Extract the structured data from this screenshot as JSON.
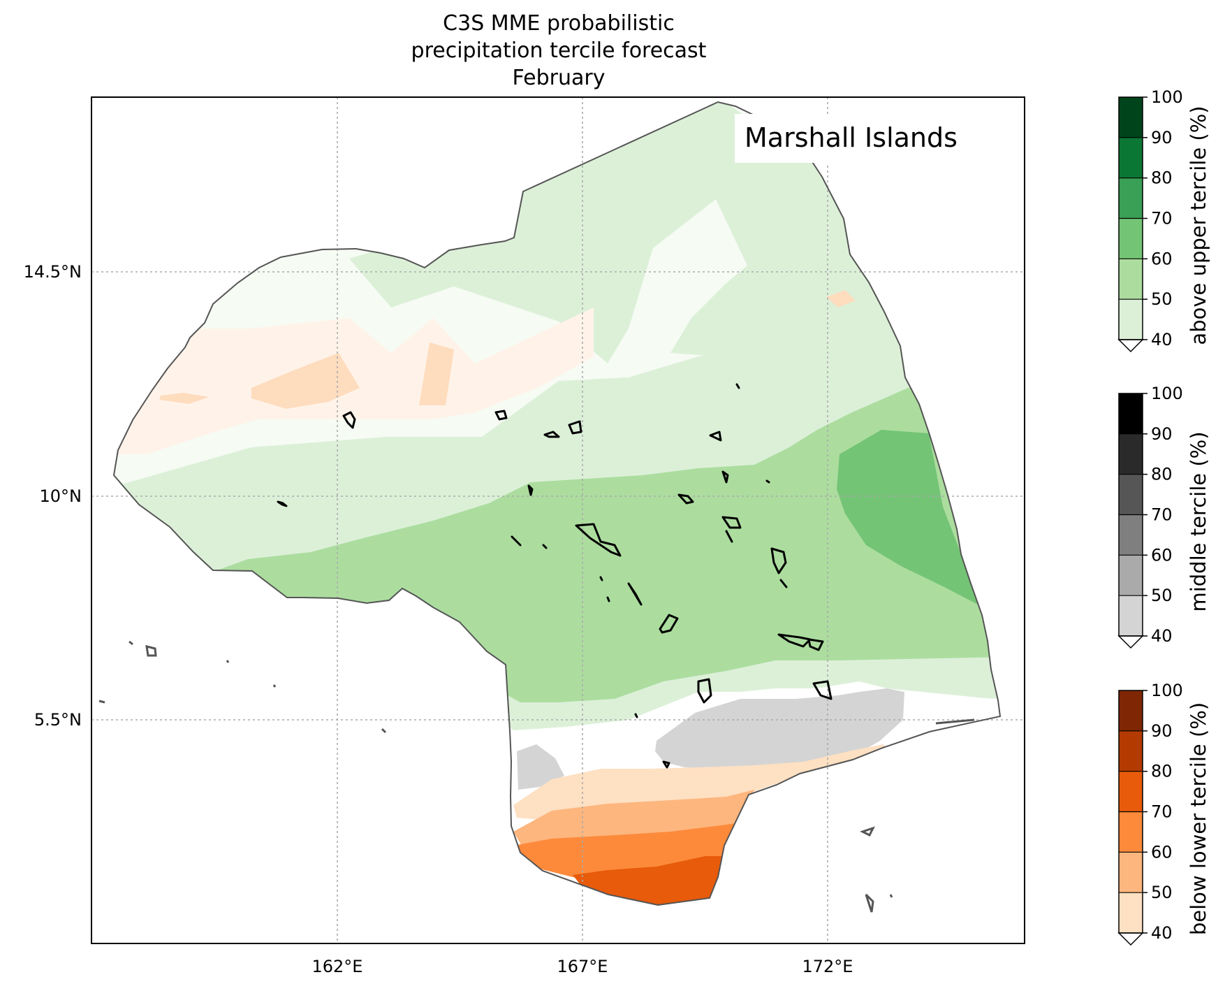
{
  "title_lines": [
    "C3S MME probabilistic",
    "precipitation tercile forecast",
    "February"
  ],
  "region_label": "Marshall Islands",
  "axes": {
    "x_ticks": [
      "162°E",
      "167°E",
      "172°E"
    ],
    "y_ticks": [
      "14.5°N",
      "10°N",
      "5.5°N"
    ]
  },
  "colors": {
    "outline": "#555555",
    "land": "#000000",
    "grid": "#aaaaaa"
  },
  "colorbars": [
    {
      "label": "above upper tercile (%)",
      "ticks": [
        "40",
        "50",
        "60",
        "70",
        "80",
        "90",
        "100"
      ],
      "colors": [
        "#dcf0d8",
        "#acdd9f",
        "#74c476",
        "#39a055",
        "#0b7734",
        "#00441b"
      ]
    },
    {
      "label": "middle tercile (%)",
      "ticks": [
        "40",
        "50",
        "60",
        "70",
        "80",
        "90",
        "100"
      ],
      "colors": [
        "#d4d4d4",
        "#aaaaaa",
        "#7f7f7f",
        "#565656",
        "#2a2a2a",
        "#000000"
      ]
    },
    {
      "label": "below lower tercile (%)",
      "ticks": [
        "40",
        "50",
        "60",
        "70",
        "80",
        "90",
        "100"
      ],
      "colors": [
        "#fee0c2",
        "#fdb67e",
        "#fd8a3b",
        "#e75b0b",
        "#b33b02",
        "#7f2704"
      ]
    }
  ]
}
